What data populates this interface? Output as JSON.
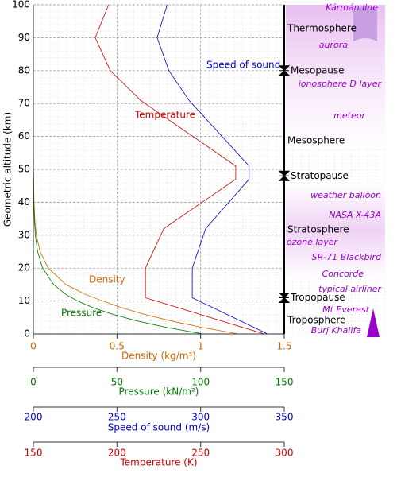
{
  "chart_data": {
    "type": "line",
    "ylabel": "Geometric altitude (km)",
    "ylim": [
      0,
      100
    ],
    "yticks": [
      0,
      10,
      20,
      30,
      40,
      50,
      60,
      70,
      80,
      90,
      100
    ],
    "grid": true,
    "axes": [
      {
        "label": "Density (kg/m³)",
        "color": "#cc6600",
        "xlim": [
          0,
          1.5
        ],
        "xticks": [
          0,
          0.5,
          1,
          1.5
        ],
        "series": {
          "name": "Density",
          "y": [
            0,
            2,
            4,
            6,
            8,
            10,
            12,
            15,
            20,
            25,
            30,
            35,
            40,
            50,
            60,
            70,
            80,
            90,
            100
          ],
          "values": [
            1.225,
            1.007,
            0.819,
            0.66,
            0.526,
            0.414,
            0.312,
            0.195,
            0.089,
            0.04,
            0.018,
            0.0085,
            0.004,
            0.001,
            0.0003,
            0.0001,
            2e-05,
            3e-06,
            6e-07
          ]
        }
      },
      {
        "label": "Pressure (kN/m²)",
        "color": "#007700",
        "xlim": [
          0,
          150
        ],
        "xticks": [
          0,
          50,
          100,
          150
        ],
        "series": {
          "name": "Pressure",
          "y": [
            0,
            2,
            4,
            6,
            8,
            10,
            12,
            15,
            20,
            25,
            30,
            35,
            40,
            50,
            60,
            70,
            80,
            90,
            100
          ],
          "values": [
            101.3,
            79.5,
            61.6,
            47.2,
            35.6,
            26.5,
            19.4,
            12.1,
            5.53,
            2.55,
            1.2,
            0.57,
            0.29,
            0.08,
            0.02,
            0.005,
            0.001,
            0.0002,
            3e-05
          ]
        }
      },
      {
        "label": "Speed of sound (m/s)",
        "color": "#0000cc",
        "xlim": [
          200,
          350
        ],
        "xticks": [
          200,
          250,
          300,
          350
        ],
        "series": {
          "name": "Speed of sound",
          "y": [
            0,
            11,
            20,
            32,
            47,
            51,
            71,
            80,
            90,
            100
          ],
          "values": [
            340,
            295,
            295,
            303,
            329,
            329,
            293,
            281,
            274,
            280
          ]
        }
      },
      {
        "label": "Temperature (K)",
        "color": "#cc0000",
        "xlim": [
          150,
          300
        ],
        "xticks": [
          150,
          200,
          250,
          300
        ],
        "series": {
          "name": "Temperature",
          "y": [
            0,
            11,
            20,
            32,
            47,
            51,
            71,
            80,
            90,
            100
          ],
          "values": [
            288,
            217,
            217,
            228,
            271,
            271,
            214,
            196,
            187,
            195
          ]
        }
      }
    ],
    "layers": [
      "Thermosphere",
      "Mesosphere",
      "Stratosphere",
      "Troposphere"
    ],
    "boundaries": [
      {
        "name": "Mesopause",
        "value": 80
      },
      {
        "name": "Stratopause",
        "value": 48
      },
      {
        "name": "Tropopause",
        "value": 11
      }
    ],
    "annotations": [
      "Kármán line",
      "aurora",
      "ionosphere D layer",
      "meteor",
      "weather balloon",
      "NASA X-43A",
      "ozone layer",
      "SR-71 Blackbird",
      "Concorde",
      "typical airliner",
      "Mt Everest",
      "Burj Khalifa"
    ]
  }
}
